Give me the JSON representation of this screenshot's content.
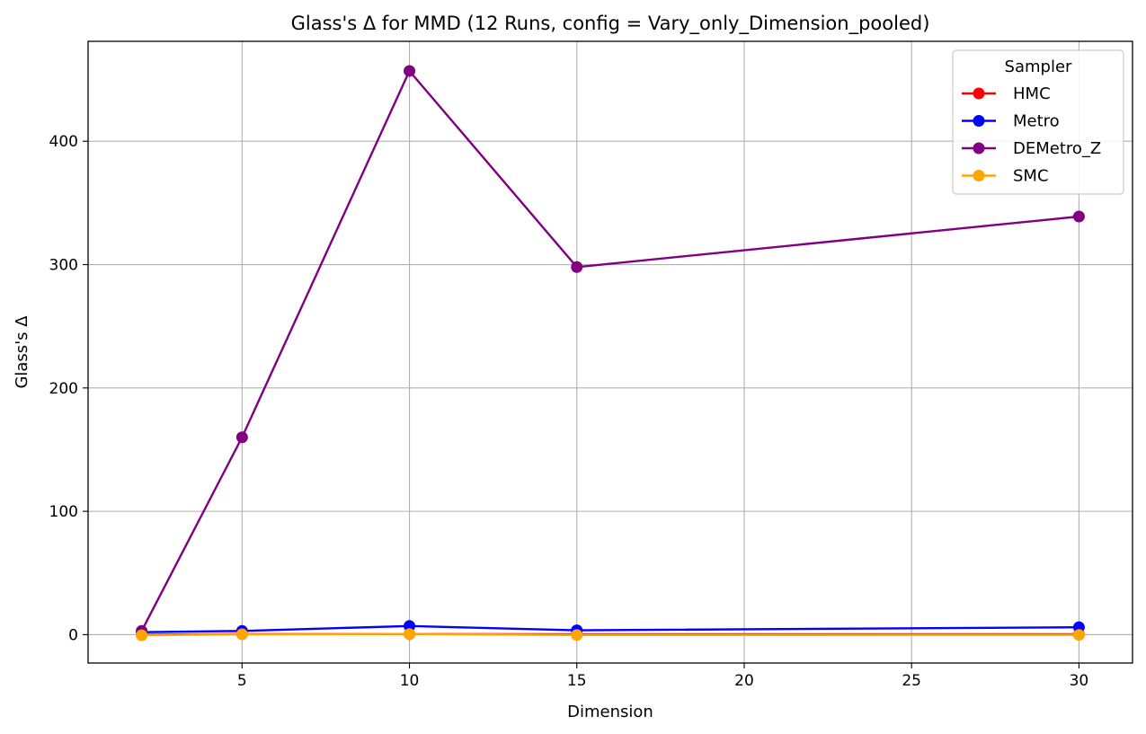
{
  "chart_data": {
    "type": "line",
    "title": "Glass's Δ for MMD (12 Runs, config = Vary_only_Dimension_pooled)",
    "xlabel": "Dimension",
    "ylabel": "Glass's Δ",
    "x": [
      2,
      5,
      10,
      15,
      30
    ],
    "xlim": [
      0.4,
      31.6
    ],
    "ylim": [
      -23,
      481
    ],
    "xticks": [
      5,
      10,
      15,
      20,
      25,
      30
    ],
    "yticks": [
      0,
      100,
      200,
      300,
      400
    ],
    "grid": true,
    "legend": {
      "title": "Sampler",
      "placement": "top-right"
    },
    "series": [
      {
        "name": "HMC",
        "color": "#ff0000",
        "values": [
          0,
          0.5,
          0.5,
          0.3,
          0.3
        ]
      },
      {
        "name": "Metro",
        "color": "#0000ff",
        "values": [
          2,
          3,
          7,
          3.5,
          6
        ]
      },
      {
        "name": "DEMetro_Z",
        "color": "#800080",
        "values": [
          3,
          160,
          457,
          298,
          339
        ]
      },
      {
        "name": "SMC",
        "color": "#ffa500",
        "values": [
          -0.5,
          0.3,
          0.5,
          -0.3,
          -0.2
        ]
      }
    ]
  }
}
